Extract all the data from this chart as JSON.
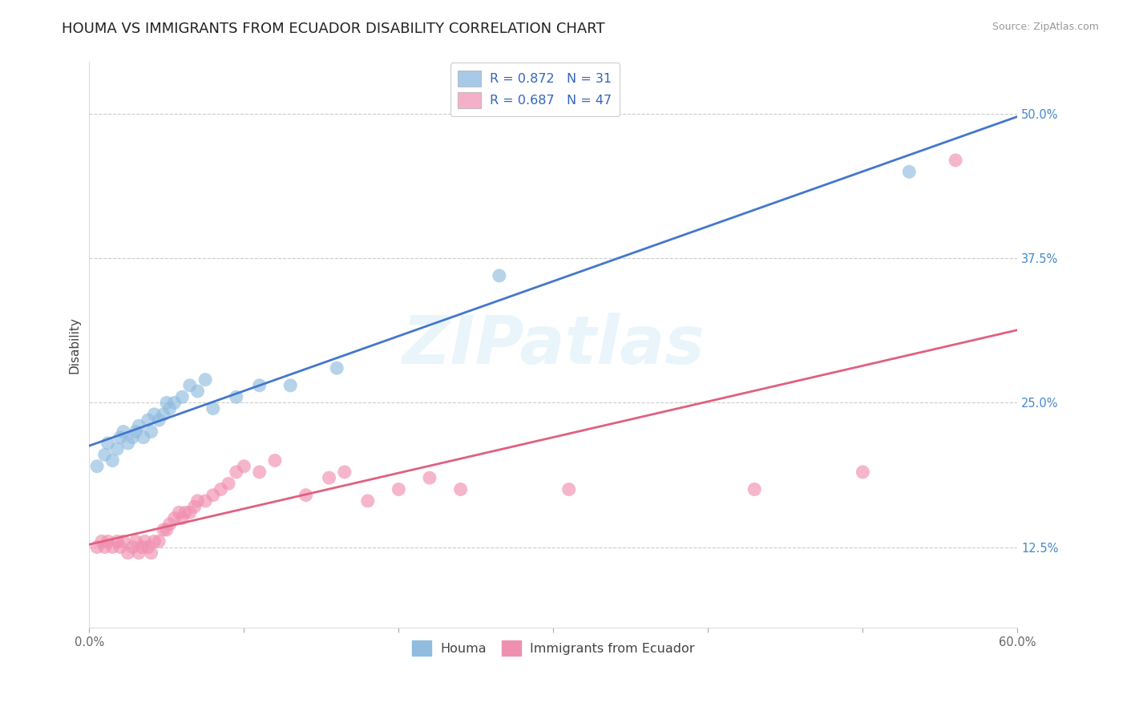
{
  "title": "HOUMA VS IMMIGRANTS FROM ECUADOR DISABILITY CORRELATION CHART",
  "source": "Source: ZipAtlas.com",
  "ylabel": "Disability",
  "watermark": "ZIPatlas",
  "legend_top": [
    {
      "label": "R = 0.872   N = 31",
      "color": "#a8c8e8"
    },
    {
      "label": "R = 0.687   N = 47",
      "color": "#f4b0c8"
    }
  ],
  "legend_bottom_labels": [
    "Houma",
    "Immigrants from Ecuador"
  ],
  "houma_color": "#90bce0",
  "ecuador_color": "#f090b0",
  "houma_edge_color": "#90bce0",
  "ecuador_edge_color": "#f090b0",
  "houma_line_color": "#4477cc",
  "ecuador_line_color": "#e06080",
  "xlim": [
    0.0,
    0.6
  ],
  "ylim": [
    0.055,
    0.545
  ],
  "xticks": [
    0.0,
    0.1,
    0.2,
    0.3,
    0.4,
    0.5,
    0.6
  ],
  "xticklabels": [
    "0.0%",
    "",
    "",
    "",
    "",
    "",
    "60.0%"
  ],
  "yticks": [
    0.125,
    0.25,
    0.375,
    0.5
  ],
  "yticklabels": [
    "12.5%",
    "25.0%",
    "37.5%",
    "50.0%"
  ],
  "houma_x": [
    0.005,
    0.01,
    0.012,
    0.015,
    0.018,
    0.02,
    0.022,
    0.025,
    0.028,
    0.03,
    0.032,
    0.035,
    0.038,
    0.04,
    0.042,
    0.045,
    0.048,
    0.05,
    0.052,
    0.055,
    0.06,
    0.065,
    0.07,
    0.075,
    0.08,
    0.095,
    0.11,
    0.13,
    0.16,
    0.265,
    0.53
  ],
  "houma_y": [
    0.195,
    0.205,
    0.215,
    0.2,
    0.21,
    0.22,
    0.225,
    0.215,
    0.22,
    0.225,
    0.23,
    0.22,
    0.235,
    0.225,
    0.24,
    0.235,
    0.24,
    0.25,
    0.245,
    0.25,
    0.255,
    0.265,
    0.26,
    0.27,
    0.245,
    0.255,
    0.265,
    0.265,
    0.28,
    0.36,
    0.45
  ],
  "ecuador_x": [
    0.005,
    0.008,
    0.01,
    0.012,
    0.015,
    0.018,
    0.02,
    0.022,
    0.025,
    0.028,
    0.03,
    0.032,
    0.034,
    0.036,
    0.038,
    0.04,
    0.042,
    0.045,
    0.048,
    0.05,
    0.052,
    0.055,
    0.058,
    0.06,
    0.062,
    0.065,
    0.068,
    0.07,
    0.075,
    0.08,
    0.085,
    0.09,
    0.095,
    0.1,
    0.11,
    0.12,
    0.14,
    0.155,
    0.165,
    0.18,
    0.2,
    0.22,
    0.24,
    0.31,
    0.43,
    0.5,
    0.56
  ],
  "ecuador_y": [
    0.125,
    0.13,
    0.125,
    0.13,
    0.125,
    0.13,
    0.125,
    0.13,
    0.12,
    0.125,
    0.13,
    0.12,
    0.125,
    0.13,
    0.125,
    0.12,
    0.13,
    0.13,
    0.14,
    0.14,
    0.145,
    0.15,
    0.155,
    0.15,
    0.155,
    0.155,
    0.16,
    0.165,
    0.165,
    0.17,
    0.175,
    0.18,
    0.19,
    0.195,
    0.19,
    0.2,
    0.17,
    0.185,
    0.19,
    0.165,
    0.175,
    0.185,
    0.175,
    0.175,
    0.175,
    0.19,
    0.46
  ],
  "background_color": "#ffffff",
  "grid_color": "#cccccc",
  "title_fontsize": 13,
  "axis_fontsize": 11,
  "tick_fontsize": 10.5,
  "legend_fontsize": 11.5
}
